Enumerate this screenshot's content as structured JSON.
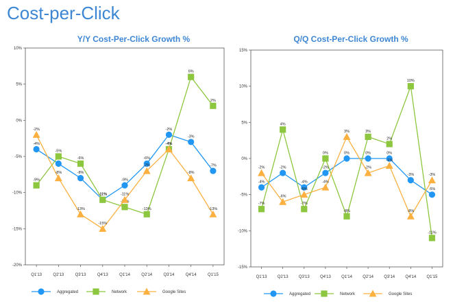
{
  "page": {
    "title": "Cost-per-Click"
  },
  "chart_data": [
    {
      "type": "line",
      "title": "Y/Y Cost-Per-Click Growth %",
      "categories": [
        "Q1'13",
        "Q2'13",
        "Q3'13",
        "Q4'13",
        "Q1'14",
        "Q2'14",
        "Q3'14",
        "Q4'14",
        "Q1'15"
      ],
      "ylim": [
        -20,
        10
      ],
      "yticks": [
        10,
        5,
        0,
        -5,
        -10,
        -15,
        -20
      ],
      "ytick_labels": [
        "10%",
        "5%",
        "0%",
        "-5%",
        "-10%",
        "-15%",
        "-20%"
      ],
      "series": [
        {
          "name": "Aggregated",
          "color": "#2196f3",
          "marker": "circle",
          "values": [
            -4,
            -6,
            -8,
            -11,
            -9,
            -6,
            -2,
            -3,
            -7
          ],
          "labels": [
            "-4%",
            "-6%",
            "-8%",
            "-11%",
            "-9%",
            "-6%",
            "-2%",
            "-3%",
            "-7%"
          ]
        },
        {
          "name": "Network",
          "color": "#8dc63f",
          "marker": "square",
          "values": [
            -9,
            -5,
            -6,
            -11,
            -12,
            -13,
            -4,
            6,
            2
          ],
          "labels": [
            "-9%",
            "-5%",
            "-6%",
            "-11%",
            "-12%",
            "-13%",
            "-4%",
            "6%",
            "2%"
          ]
        },
        {
          "name": "Google Sites",
          "color": "#fbb040",
          "marker": "triangle",
          "values": [
            -2,
            -8,
            -13,
            -15,
            -11,
            -7,
            -4,
            -8,
            -13
          ],
          "labels": [
            "-2%",
            "-8%",
            "-13%",
            "-15%",
            "-11%",
            "-7%",
            "-4%",
            "-8%",
            "-13%"
          ]
        }
      ],
      "legend": "bottom"
    },
    {
      "type": "line",
      "title": "Q/Q Cost-Per-Click Growth %",
      "categories": [
        "Q1'13",
        "Q2'13",
        "Q3'13",
        "Q4'13",
        "Q1'14",
        "Q2'14",
        "Q3'14",
        "Q4'14",
        "Q1'15"
      ],
      "ylim": [
        -15,
        15
      ],
      "yticks": [
        15,
        10,
        5,
        0,
        -5,
        -10,
        -15
      ],
      "ytick_labels": [
        "15%",
        "10%",
        "5%",
        "0%",
        "-5%",
        "-10%",
        "-15%"
      ],
      "series": [
        {
          "name": "Aggregated",
          "color": "#2196f3",
          "marker": "circle",
          "values": [
            -4,
            -2,
            -4,
            -2,
            0,
            0,
            0,
            -3,
            -5
          ],
          "labels": [
            "-4%",
            "-2%",
            "-4%",
            "-2%",
            "0%",
            "0%",
            "0%",
            "-3%",
            "-5%"
          ]
        },
        {
          "name": "Network",
          "color": "#8dc63f",
          "marker": "square",
          "values": [
            -7,
            4,
            -7,
            0,
            -8,
            3,
            2,
            10,
            -11
          ],
          "labels": [
            "-7%",
            "4%",
            "-7%",
            "0%",
            "-8%",
            "3%",
            "2%",
            "10%",
            "-11%"
          ]
        },
        {
          "name": "Google Sites",
          "color": "#fbb040",
          "marker": "triangle",
          "values": [
            -2,
            -6,
            -5,
            -4,
            3,
            -2,
            -1,
            -8,
            -3
          ],
          "labels": [
            "-2%",
            "-6%",
            "-5%",
            "-4%",
            "3%",
            "-2%",
            "-1%",
            "-8%",
            "-3%"
          ]
        }
      ],
      "legend": "bottom"
    }
  ]
}
